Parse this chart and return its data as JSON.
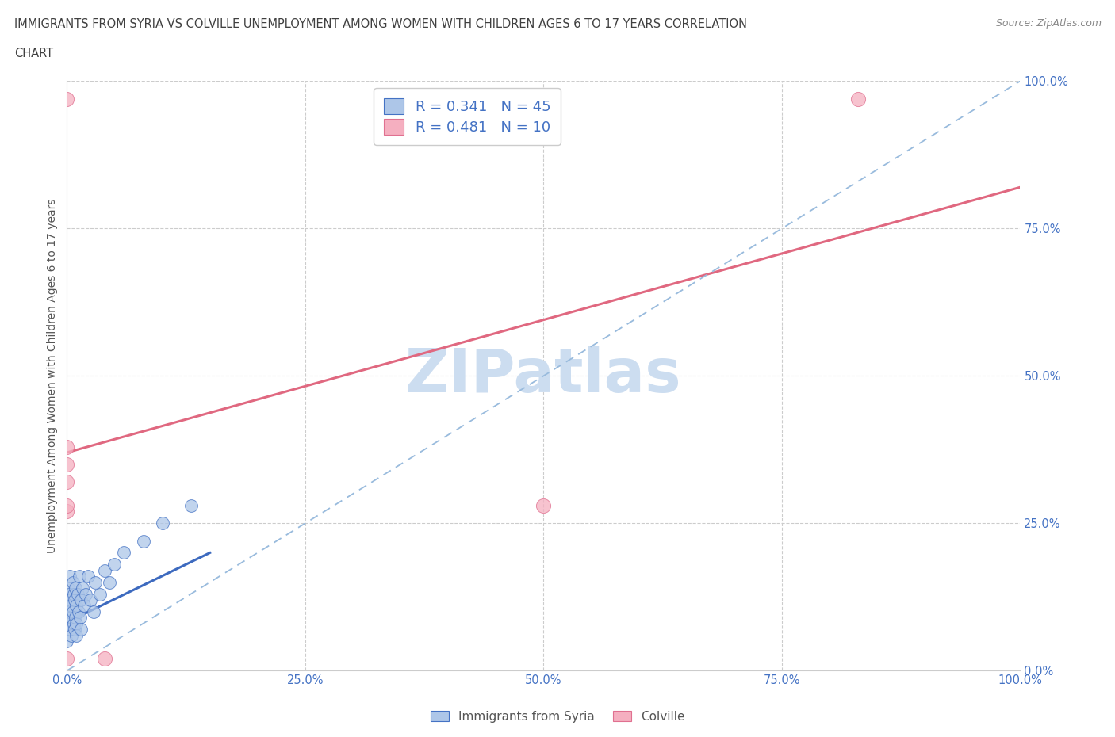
{
  "title_line1": "IMMIGRANTS FROM SYRIA VS COLVILLE UNEMPLOYMENT AMONG WOMEN WITH CHILDREN AGES 6 TO 17 YEARS CORRELATION",
  "title_line2": "CHART",
  "source": "Source: ZipAtlas.com",
  "ylabel": "Unemployment Among Women with Children Ages 6 to 17 years",
  "xlim": [
    0,
    1
  ],
  "ylim": [
    0,
    1
  ],
  "xticks": [
    0,
    0.25,
    0.5,
    0.75,
    1.0
  ],
  "yticks": [
    0,
    0.25,
    0.5,
    0.75,
    1.0
  ],
  "xticklabels": [
    "0.0%",
    "25.0%",
    "50.0%",
    "75.0%",
    "100.0%"
  ],
  "yticklabels": [
    "0.0%",
    "25.0%",
    "50.0%",
    "75.0%",
    "100.0%"
  ],
  "legend_labels": [
    "Immigrants from Syria",
    "Colville"
  ],
  "series1_color": "#adc6e8",
  "series2_color": "#f5afc0",
  "series1_edge_color": "#4472c4",
  "series2_edge_color": "#e07090",
  "series1_line_color": "#3d6abf",
  "series2_line_color": "#e06880",
  "R1": 0.341,
  "N1": 45,
  "R2": 0.481,
  "N2": 10,
  "watermark": "ZIPatlas",
  "watermark_color": "#ccddf0",
  "background_color": "#ffffff",
  "grid_color": "#cccccc",
  "title_color": "#404040",
  "tick_color": "#4472c4",
  "source_color": "#888888",
  "series1_x": [
    0.0,
    0.0,
    0.001,
    0.001,
    0.002,
    0.002,
    0.003,
    0.003,
    0.004,
    0.004,
    0.005,
    0.005,
    0.005,
    0.006,
    0.006,
    0.007,
    0.007,
    0.008,
    0.008,
    0.009,
    0.009,
    0.01,
    0.01,
    0.01,
    0.011,
    0.012,
    0.013,
    0.014,
    0.015,
    0.015,
    0.016,
    0.018,
    0.02,
    0.022,
    0.025,
    0.028,
    0.03,
    0.035,
    0.04,
    0.045,
    0.05,
    0.06,
    0.08,
    0.1,
    0.13
  ],
  "series1_y": [
    0.05,
    0.09,
    0.11,
    0.14,
    0.08,
    0.13,
    0.1,
    0.16,
    0.07,
    0.12,
    0.09,
    0.11,
    0.06,
    0.1,
    0.15,
    0.08,
    0.13,
    0.07,
    0.12,
    0.09,
    0.14,
    0.08,
    0.11,
    0.06,
    0.13,
    0.1,
    0.16,
    0.09,
    0.12,
    0.07,
    0.14,
    0.11,
    0.13,
    0.16,
    0.12,
    0.1,
    0.15,
    0.13,
    0.17,
    0.15,
    0.18,
    0.2,
    0.22,
    0.25,
    0.28
  ],
  "series2_x": [
    0.0,
    0.0,
    0.04,
    0.0,
    0.5,
    0.83,
    0.0,
    0.0,
    0.0,
    0.0
  ],
  "series2_y": [
    0.38,
    0.97,
    0.02,
    0.27,
    0.28,
    0.97,
    0.35,
    0.28,
    0.32,
    0.02
  ],
  "pink_trend_x0": 0.0,
  "pink_trend_y0": 0.37,
  "pink_trend_x1": 1.0,
  "pink_trend_y1": 0.82,
  "blue_trend_x0": 0.0,
  "blue_trend_y0": 0.082,
  "blue_trend_x1": 0.15,
  "blue_trend_y1": 0.2,
  "diag_dash_color": "#99bbdd"
}
